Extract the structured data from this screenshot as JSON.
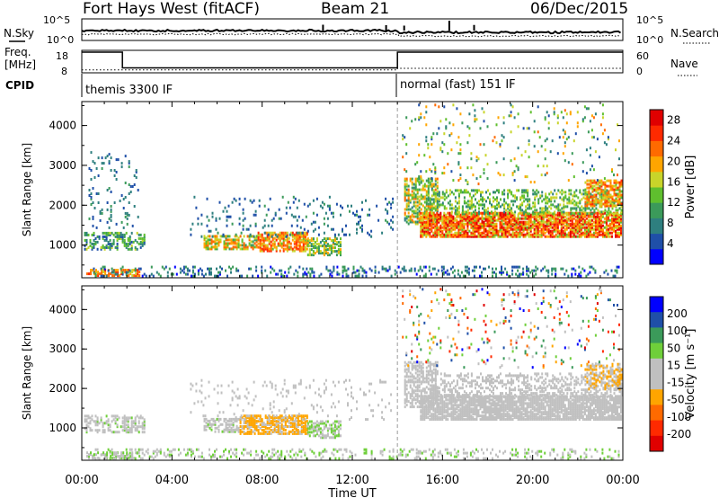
{
  "header": {
    "station": "Fort Hays West (fitACF)",
    "beam": "Beam 21",
    "date": "06/Dec/2015"
  },
  "labels": {
    "nsky": "N.Sky",
    "nsearch": "N.Search",
    "freq_line1": "Freq.",
    "freq_line2": "[MHz]",
    "nave": "Nave",
    "cpid": "CPID",
    "slant_range": "Slant Range [km]",
    "time_ut": "Time UT",
    "power_label": "Power [dB]",
    "velocity_label": "Velocity [m s⁻¹]",
    "noise_left_ticks": [
      "10^5",
      "10^0"
    ],
    "noise_right_ticks": [
      "10^5",
      "10^0"
    ],
    "freq_ticks": [
      "18",
      "8"
    ],
    "nave_ticks": [
      "60",
      "0"
    ]
  },
  "cpid_segments": [
    {
      "label": "themis 3300 IF",
      "start_hour": 0
    },
    {
      "label": "normal (fast) 151 IF",
      "start_hour": 14
    }
  ],
  "colors": {
    "power": [
      "#0000ff",
      "#1f4fa8",
      "#2e7f7f",
      "#3b9a5a",
      "#5fbf2e",
      "#c8d42a",
      "#ffa500",
      "#ff6a00",
      "#ff2a00",
      "#e00000"
    ],
    "velocity": [
      "#0000ff",
      "#1f4fa8",
      "#3b9a5a",
      "#6fcf3a",
      "#c0c0c0",
      "#c0c0c0",
      "#ffa500",
      "#ff6a00",
      "#ff2a00",
      "#e00000"
    ]
  },
  "chart_data": {
    "type": "heatmap",
    "x": {
      "label": "Time UT",
      "range_hours": [
        0,
        24
      ],
      "ticks": [
        "00:00",
        "04:00",
        "08:00",
        "12:00",
        "16:00",
        "20:00",
        "00:00"
      ]
    },
    "y": {
      "label": "Slant Range [km]",
      "range": [
        180,
        4600
      ],
      "ticks": [
        1000,
        2000,
        3000,
        4000
      ]
    },
    "mode_change_hour": 14,
    "noise": {
      "sky_level": 10.5,
      "search_level": 10.0,
      "sky_spikes": [
        {
          "h": 10.7,
          "v": 13.5
        },
        {
          "h": 13.5,
          "v": 13.0
        },
        {
          "h": 14.3,
          "v": 12.5
        },
        {
          "h": 16.3,
          "v": 18.0
        },
        {
          "h": 17.4,
          "v": 13.2
        }
      ]
    },
    "frequency": [
      {
        "h0": 0,
        "h1": 1.8,
        "mhz": 18
      },
      {
        "h0": 1.8,
        "h1": 14,
        "mhz": 11
      },
      {
        "h0": 14,
        "h1": 24,
        "mhz": 18
      }
    ],
    "nave": [
      {
        "h0": 0,
        "h1": 14,
        "value": 8
      },
      {
        "h0": 14,
        "h1": 24,
        "value": 12
      }
    ],
    "power": {
      "colorbar_ticks": [
        4,
        8,
        12,
        16,
        20,
        24,
        28
      ],
      "range": [
        0,
        30
      ],
      "regions": [
        {
          "h0": 0.2,
          "h1": 2.6,
          "r0": 200,
          "r1": 360,
          "v0": 16,
          "v1": 26,
          "density": 0.6
        },
        {
          "h0": 0.1,
          "h1": 2.8,
          "r0": 860,
          "r1": 1300,
          "v0": 4,
          "v1": 16,
          "density": 0.45
        },
        {
          "h0": 0.3,
          "h1": 2.5,
          "r0": 1400,
          "r1": 3300,
          "v0": 3,
          "v1": 10,
          "density": 0.07
        },
        {
          "h0": 5.4,
          "h1": 7.8,
          "r0": 870,
          "r1": 1220,
          "v0": 10,
          "v1": 24,
          "density": 0.6
        },
        {
          "h0": 7.8,
          "h1": 10.0,
          "r0": 820,
          "r1": 1280,
          "v0": 14,
          "v1": 26,
          "density": 0.72
        },
        {
          "h0": 10.0,
          "h1": 11.5,
          "r0": 720,
          "r1": 1140,
          "v0": 8,
          "v1": 20,
          "density": 0.55
        },
        {
          "h0": 4.8,
          "h1": 13.8,
          "r0": 1180,
          "r1": 2200,
          "v0": 3,
          "v1": 10,
          "density": 0.07
        },
        {
          "h0": 14.3,
          "h1": 15.8,
          "r0": 1500,
          "r1": 2650,
          "v0": 8,
          "v1": 22,
          "density": 0.55
        },
        {
          "h0": 15.0,
          "h1": 23.9,
          "r0": 1180,
          "r1": 1800,
          "v0": 14,
          "v1": 30,
          "density": 0.82
        },
        {
          "h0": 15.5,
          "h1": 23.9,
          "r0": 1750,
          "r1": 2350,
          "v0": 8,
          "v1": 18,
          "density": 0.35
        },
        {
          "h0": 22.3,
          "h1": 23.9,
          "r0": 1950,
          "r1": 2600,
          "v0": 14,
          "v1": 26,
          "density": 0.55
        },
        {
          "h0": 14.2,
          "h1": 23.8,
          "r0": 2500,
          "r1": 4500,
          "v0": 4,
          "v1": 22,
          "density": 0.05
        },
        {
          "h0": 0.5,
          "h1": 23.8,
          "r0": 190,
          "r1": 420,
          "v0": 2,
          "v1": 12,
          "density": 0.22
        }
      ]
    },
    "velocity": {
      "colorbar_ticks": [
        200,
        100,
        50,
        15,
        -15,
        -50,
        -100,
        -200
      ],
      "range": [
        -250,
        250
      ],
      "regions": [
        {
          "h0": 0.1,
          "h1": 2.8,
          "r0": 860,
          "r1": 1300,
          "v0": -20,
          "v1": 60,
          "density": 0.42
        },
        {
          "h0": 0.2,
          "h1": 2.6,
          "r0": 200,
          "r1": 360,
          "v0": 20,
          "v1": 80,
          "density": 0.5
        },
        {
          "h0": 5.4,
          "h1": 7.0,
          "r0": 870,
          "r1": 1220,
          "v0": -40,
          "v1": 60,
          "density": 0.55
        },
        {
          "h0": 7.0,
          "h1": 10.0,
          "r0": 820,
          "r1": 1280,
          "v0": -90,
          "v1": -30,
          "density": 0.72
        },
        {
          "h0": 10.0,
          "h1": 11.5,
          "r0": 720,
          "r1": 1140,
          "v0": 20,
          "v1": 80,
          "density": 0.55
        },
        {
          "h0": 4.8,
          "h1": 13.8,
          "r0": 1180,
          "r1": 2200,
          "v0": -14,
          "v1": 14,
          "density": 0.06
        },
        {
          "h0": 14.3,
          "h1": 15.8,
          "r0": 1500,
          "r1": 2650,
          "v0": -14,
          "v1": 14,
          "density": 0.55
        },
        {
          "h0": 15.0,
          "h1": 23.9,
          "r0": 1180,
          "r1": 1800,
          "v0": -14,
          "v1": 14,
          "density": 0.82
        },
        {
          "h0": 15.5,
          "h1": 23.9,
          "r0": 1750,
          "r1": 2350,
          "v0": -14,
          "v1": 14,
          "density": 0.35
        },
        {
          "h0": 22.3,
          "h1": 23.9,
          "r0": 1950,
          "r1": 2600,
          "v0": -90,
          "v1": -20,
          "density": 0.45
        },
        {
          "h0": 14.2,
          "h1": 23.8,
          "r0": 2500,
          "r1": 4500,
          "v0": -220,
          "v1": 220,
          "density": 0.05
        },
        {
          "h0": 0.5,
          "h1": 23.8,
          "r0": 190,
          "r1": 420,
          "v0": 15,
          "v1": 70,
          "density": 0.2
        }
      ]
    }
  }
}
